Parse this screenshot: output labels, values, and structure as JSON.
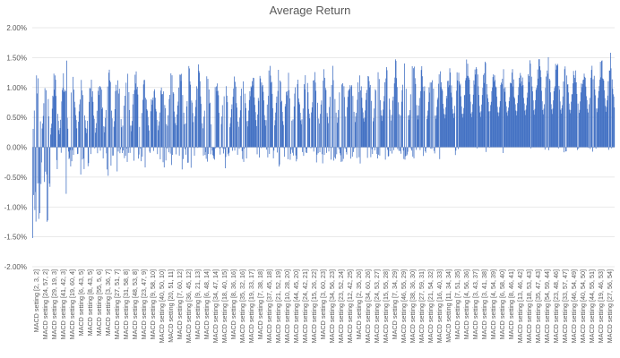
{
  "chart_data": {
    "type": "bar",
    "title": "Average Return",
    "xlabel": "",
    "ylabel": "",
    "ylim": [
      -0.02,
      0.02
    ],
    "y_tick_values": [
      -0.02,
      -0.015,
      -0.01,
      -0.005,
      0,
      0.005,
      0.01,
      0.015,
      0.02
    ],
    "y_tick_labels": [
      "-2.00%",
      "-1.50%",
      "-1.00%",
      "-0.50%",
      "0.00%",
      "0.50%",
      "1.00%",
      "1.50%",
      "2.00%"
    ],
    "x_tick_labels": [
      "MACD setting [2, 3, 2]",
      "MACD setting [24, 57, 2]",
      "MACD setting [29, 19, 3]",
      "MACD setting [41, 42, 3]",
      "MACD setting [19, 60, 4]",
      "MACD setting [6, 43, 5]",
      "MACD setting [8, 43, 5]",
      "MACD setting [55, 5, 6]",
      "MACD setting [3, 36, 7]",
      "MACD setting [27, 51, 7]",
      "MACD setting [31, 58, 8]",
      "MACD setting [48, 53, 8]",
      "MACD setting [23, 47, 9]",
      "MACD setting [9, 58, 10]",
      "MACD setting [40, 50, 10]",
      "MACD setting [20, 51, 11]",
      "MACD setting [7, 60, 12]",
      "MACD setting [36, 45, 12]",
      "MACD setting [9, 21, 13]",
      "MACD setting [6, 48, 14]",
      "MACD setting [34, 47, 14]",
      "MACD setting [18, 40, 15]",
      "MACD setting [8, 36, 16]",
      "MACD setting [35, 32, 16]",
      "MACD setting [19, 33, 17]",
      "MACD setting [7, 38, 18]",
      "MACD setting [37, 45, 18]",
      "MACD setting [21, 52, 19]",
      "MACD setting [10, 28, 20]",
      "MACD setting [44, 45, 20]",
      "MACD setting [24, 42, 21]",
      "MACD setting [15, 26, 22]",
      "MACD setting [3, 60, 23]",
      "MACD setting [34, 56, 23]",
      "MACD setting [23, 52, 24]",
      "MACD setting [12, 42, 25]",
      "MACD setting [2, 35, 26]",
      "MACD setting [34, 60, 26]",
      "MACD setting [24, 53, 27]",
      "MACD setting [15, 55, 28]",
      "MACD setting [7, 34, 29]",
      "MACD setting [46, 55, 29]",
      "MACD setting [38, 36, 30]",
      "MACD setting [27, 59, 31]",
      "MACD setting [21, 54, 32]",
      "MACD setting [16, 40, 33]",
      "MACD setting [11, 34, 34]",
      "MACD setting [7, 51, 35]",
      "MACD setting [4, 56, 36]",
      "MACD setting [3, 43, 37]",
      "MACD setting [3, 41, 38]",
      "MACD setting [4, 54, 39]",
      "MACD setting [6, 58, 40]",
      "MACD setting [8, 46, 41]",
      "MACD setting [13, 46, 42]",
      "MACD setting [18, 53, 43]",
      "MACD setting [35, 47, 43]",
      "MACD setting [54, 59, 44]",
      "MACD setting [23, 48, 46]",
      "MACD setting [33, 57, 47]",
      "MACD setting [46, 54, 49]",
      "MACD setting [40, 54, 50]",
      "MACD setting [44, 55, 51]",
      "MACD setting [19, 46, 53]",
      "MACD setting [27, 56, 54]"
    ],
    "bar_count": 1040,
    "bar_color": "#4472C4",
    "grid": true,
    "legend": "none",
    "note_series_shape": "Each label group spans about 16 settings; values mostly between 0% and 1.6%, dips to about -1.5% at the start"
  }
}
